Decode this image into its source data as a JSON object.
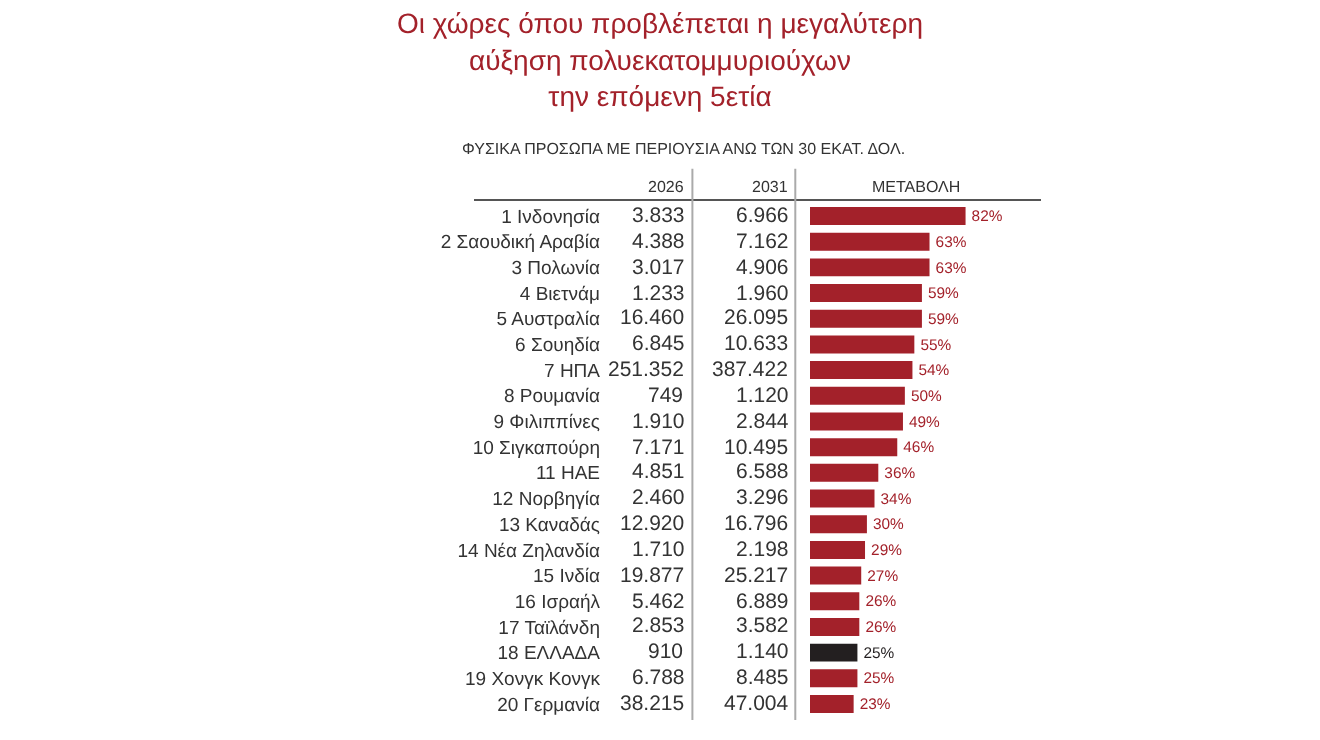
{
  "chart_data": {
    "type": "bar",
    "orientation": "horizontal",
    "title": "Οι χώρες όπου προβλέπεται η μεγαλύτερη\nαύξηση πολυεκατομμυριούχων\nτην επόμενη 5ετία",
    "subtitle": "ΦΥΣΙΚΑ ΠΡΟΣΩΠΑ ΜΕ ΠΕΡΙΟΥΣΙΑ ΑΝΩ ΤΩΝ 30 ΕΚΑΤ. ΔΟΛ.",
    "categories": [
      "1 Ινδονησία",
      "2 Σαουδική Αραβία",
      "3 Πολωνία",
      "4 Βιετνάμ",
      "5 Αυστραλία",
      "6 Σουηδία",
      "7 ΗΠΑ",
      "8 Ρουμανία",
      "9 Φιλιππίνες",
      "10 Σιγκαπούρη",
      "11 ΗΑΕ",
      "12 Νορβηγία",
      "13 Καναδάς",
      "14 Νέα Ζηλανδία",
      "15 Ινδία",
      "16 Ισραήλ",
      "17 Ταϊλάνδη",
      "18 ΕΛΛΑΔΑ",
      "19 Χονγκ Κονγκ",
      "20 Γερμανία"
    ],
    "values": [
      82,
      63,
      63,
      59,
      59,
      55,
      54,
      50,
      49,
      46,
      36,
      34,
      30,
      29,
      27,
      26,
      26,
      25,
      25,
      23
    ],
    "value_labels": [
      "82%",
      "63%",
      "63%",
      "59%",
      "59%",
      "55%",
      "54%",
      "50%",
      "49%",
      "46%",
      "36%",
      "34%",
      "30%",
      "29%",
      "27%",
      "26%",
      "26%",
      "25%",
      "25%",
      "23%"
    ],
    "colors": [
      "#a3212a",
      "#a3212a",
      "#a3212a",
      "#a3212a",
      "#a3212a",
      "#a3212a",
      "#a3212a",
      "#a3212a",
      "#a3212a",
      "#a3212a",
      "#a3212a",
      "#a3212a",
      "#a3212a",
      "#a3212a",
      "#a3212a",
      "#a3212a",
      "#a3212a",
      "#231f20",
      "#a3212a",
      "#a3212a"
    ],
    "tick_labels": "y",
    "grid": false,
    "legend": false,
    "annotations": [
      "2026",
      "2031",
      "ΜΕΤΑΒΟΛΗ",
      "3.833",
      "6.966",
      "4.388",
      "7.162",
      "3.017",
      "4.906",
      "1.233",
      "1.960",
      "16.460",
      "26.095",
      "6.845",
      "10.633",
      "251.352",
      "387.422",
      "749",
      "1.120",
      "1.910",
      "2.844",
      "7.171",
      "10.495",
      "4.851",
      "6.588",
      "2.460",
      "3.296",
      "12.920",
      "16.796",
      "1.710",
      "2.198",
      "19.877",
      "25.217",
      "5.462",
      "6.889",
      "2.853",
      "3.582",
      "910",
      "1.140",
      "6.788",
      "8.485",
      "38.215",
      "47.004"
    ]
  }
}
